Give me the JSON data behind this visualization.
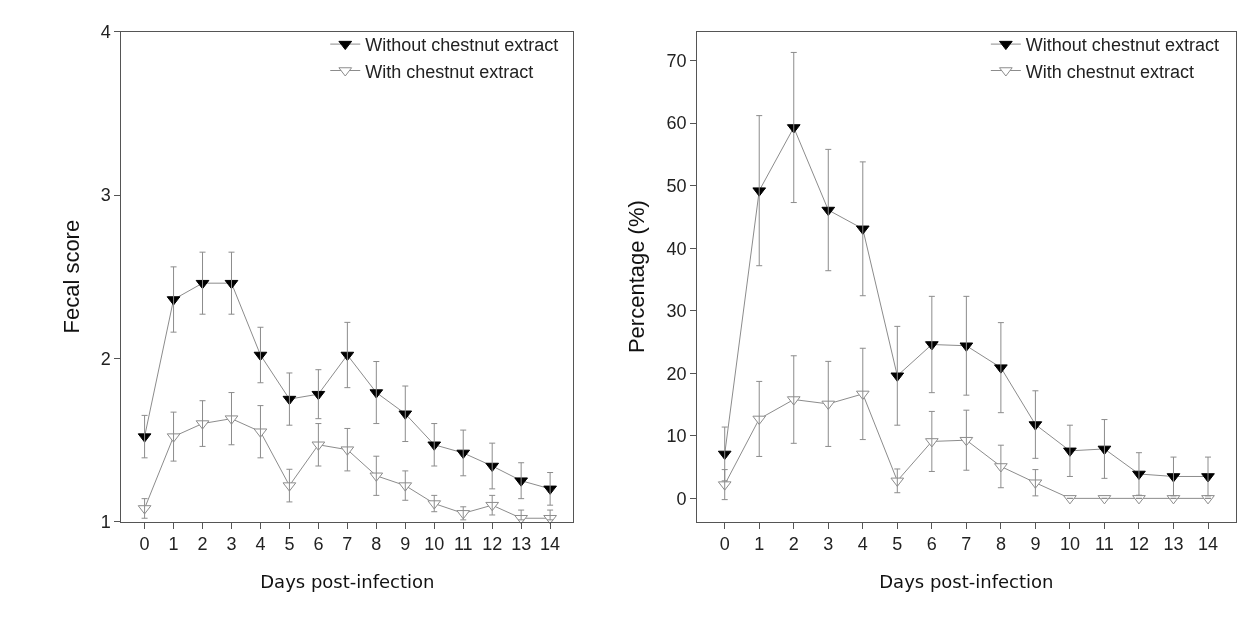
{
  "chart_data": [
    {
      "type": "line",
      "xlabel": "Days post-infection",
      "ylabel": "Fecal score",
      "x": [
        0,
        1,
        2,
        3,
        4,
        5,
        6,
        7,
        8,
        9,
        10,
        11,
        12,
        13,
        14
      ],
      "xlim": [
        -0.8,
        14.8
      ],
      "xticks": [
        0,
        1,
        2,
        3,
        4,
        5,
        6,
        7,
        8,
        9,
        10,
        11,
        12,
        13,
        14
      ],
      "ylim": [
        1,
        4
      ],
      "yticks": [
        1,
        2,
        3,
        4
      ],
      "legend": "top right",
      "marker": "triangle",
      "line_style": "solid",
      "series": [
        {
          "name": "Without chestnut extract",
          "color": "#000000",
          "values": [
            1.52,
            2.36,
            2.46,
            2.46,
            2.02,
            1.75,
            1.78,
            2.02,
            1.79,
            1.66,
            1.47,
            1.42,
            1.34,
            1.25,
            1.2
          ],
          "errors": [
            0.13,
            0.2,
            0.19,
            0.19,
            0.17,
            0.16,
            0.15,
            0.2,
            0.19,
            0.17,
            0.13,
            0.14,
            0.14,
            0.11,
            0.1
          ]
        },
        {
          "name": "With chestnut extract",
          "color": "#ffffff",
          "values": [
            1.08,
            1.52,
            1.6,
            1.63,
            1.55,
            1.22,
            1.47,
            1.44,
            1.28,
            1.22,
            1.11,
            1.05,
            1.1,
            1.02,
            1.02
          ],
          "errors": [
            0.06,
            0.15,
            0.14,
            0.16,
            0.16,
            0.1,
            0.13,
            0.13,
            0.12,
            0.09,
            0.05,
            0.04,
            0.06,
            [
              1.01,
              1.07
            ],
            [
              1.01,
              1.07
            ]
          ]
        }
      ]
    },
    {
      "type": "line",
      "xlabel": "Days post-infection",
      "ylabel": "Percentage (%)",
      "x": [
        0,
        1,
        2,
        3,
        4,
        5,
        6,
        7,
        8,
        9,
        10,
        11,
        12,
        13,
        14
      ],
      "xlim": [
        -0.8,
        14.8
      ],
      "xticks": [
        0,
        1,
        2,
        3,
        4,
        5,
        6,
        7,
        8,
        9,
        10,
        11,
        12,
        13,
        14
      ],
      "ylim": [
        -3.7,
        74.6
      ],
      "yticks": [
        0,
        10,
        20,
        30,
        40,
        50,
        60,
        70
      ],
      "legend": "top right",
      "marker": "triangle",
      "line_style": "solid",
      "series": [
        {
          "name": "Without chestnut extract",
          "color": "#000000",
          "values": [
            7.1,
            49.2,
            59.3,
            46.1,
            43.1,
            19.6,
            24.6,
            24.4,
            20.9,
            11.8,
            7.6,
            7.9,
            3.9,
            3.5,
            3.5
          ],
          "errors": [
            4.3,
            12,
            12,
            9.7,
            10.7,
            7.9,
            7.7,
            7.9,
            7.2,
            5.4,
            4.1,
            4.7,
            3.4,
            3.1,
            3.1
          ]
        },
        {
          "name": "With chestnut extract",
          "color": "#ffffff",
          "values": [
            2.2,
            12.7,
            15.8,
            15.1,
            16.7,
            2.8,
            9.1,
            9.3,
            5.1,
            2.5,
            0,
            0,
            0,
            0,
            0
          ],
          "errors": [
            2.4,
            6,
            7,
            6.8,
            7.3,
            1.9,
            4.8,
            4.8,
            3.4,
            2.1,
            null,
            null,
            null,
            null,
            null
          ]
        }
      ]
    }
  ]
}
